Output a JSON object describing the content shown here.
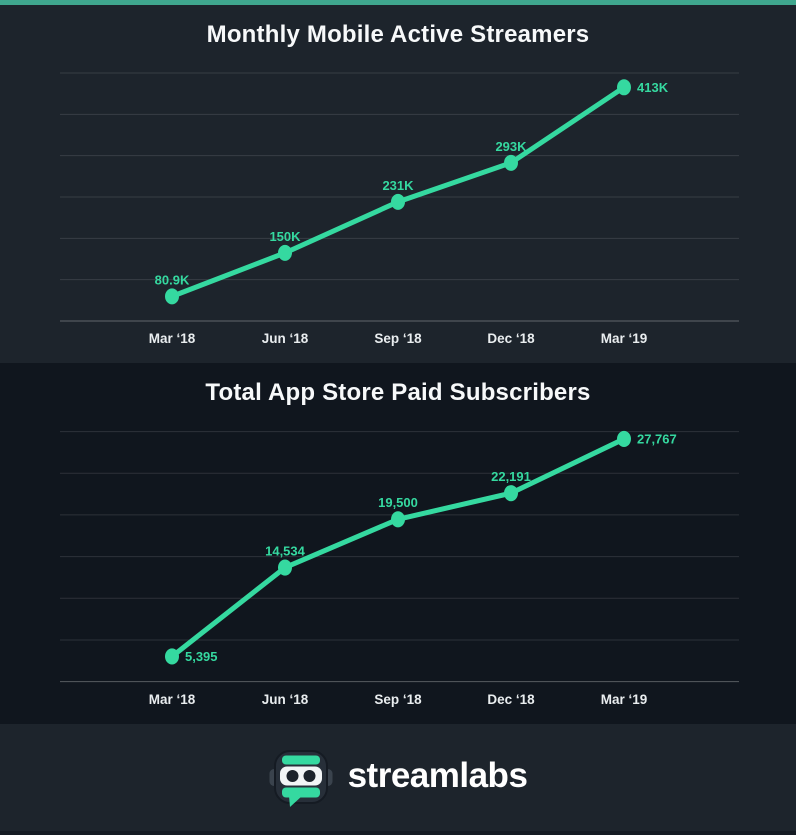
{
  "colors": {
    "accent": "#35d9a0",
    "top_bar": "#3fa78e",
    "section_light_bg": "#1d242c",
    "section_dark_bg": "#10161e",
    "gridline": "rgba(255,255,255,0.12)",
    "axis_line": "rgba(255,255,255,0.30)",
    "x_label": "#e9edef",
    "title": "#f7f9fa"
  },
  "chart_data": [
    {
      "type": "line",
      "title": "Monthly Mobile Active Streamers",
      "categories": [
        "Mar ‘18",
        "Jun ‘18",
        "Sep ‘18",
        "Dec ‘18",
        "Mar ‘19"
      ],
      "values": [
        80900,
        150000,
        231000,
        293000,
        413000
      ],
      "labels": [
        "80.9K",
        "150K",
        "231K",
        "293K",
        "413K"
      ],
      "ylim": [
        41800,
        435700
      ],
      "grid": true,
      "legend": false,
      "label_placement": [
        "above",
        "above",
        "above",
        "above",
        "right"
      ]
    },
    {
      "type": "line",
      "title": "Total App Store Paid Subscribers",
      "categories": [
        "Mar ‘18",
        "Jun ‘18",
        "Sep ‘18",
        "Dec ‘18",
        "Mar ‘19"
      ],
      "values": [
        5395,
        14534,
        19500,
        22191,
        27767
      ],
      "labels": [
        "5,395",
        "14,534",
        "19,500",
        "22,191",
        "27,767"
      ],
      "ylim": [
        2806,
        28523
      ],
      "grid": true,
      "legend": false,
      "label_placement": [
        "right",
        "above",
        "above",
        "above",
        "right"
      ]
    }
  ],
  "footer": {
    "brand_wordmark": "streamlabs",
    "logo": "streamlabs-robot-icon"
  }
}
